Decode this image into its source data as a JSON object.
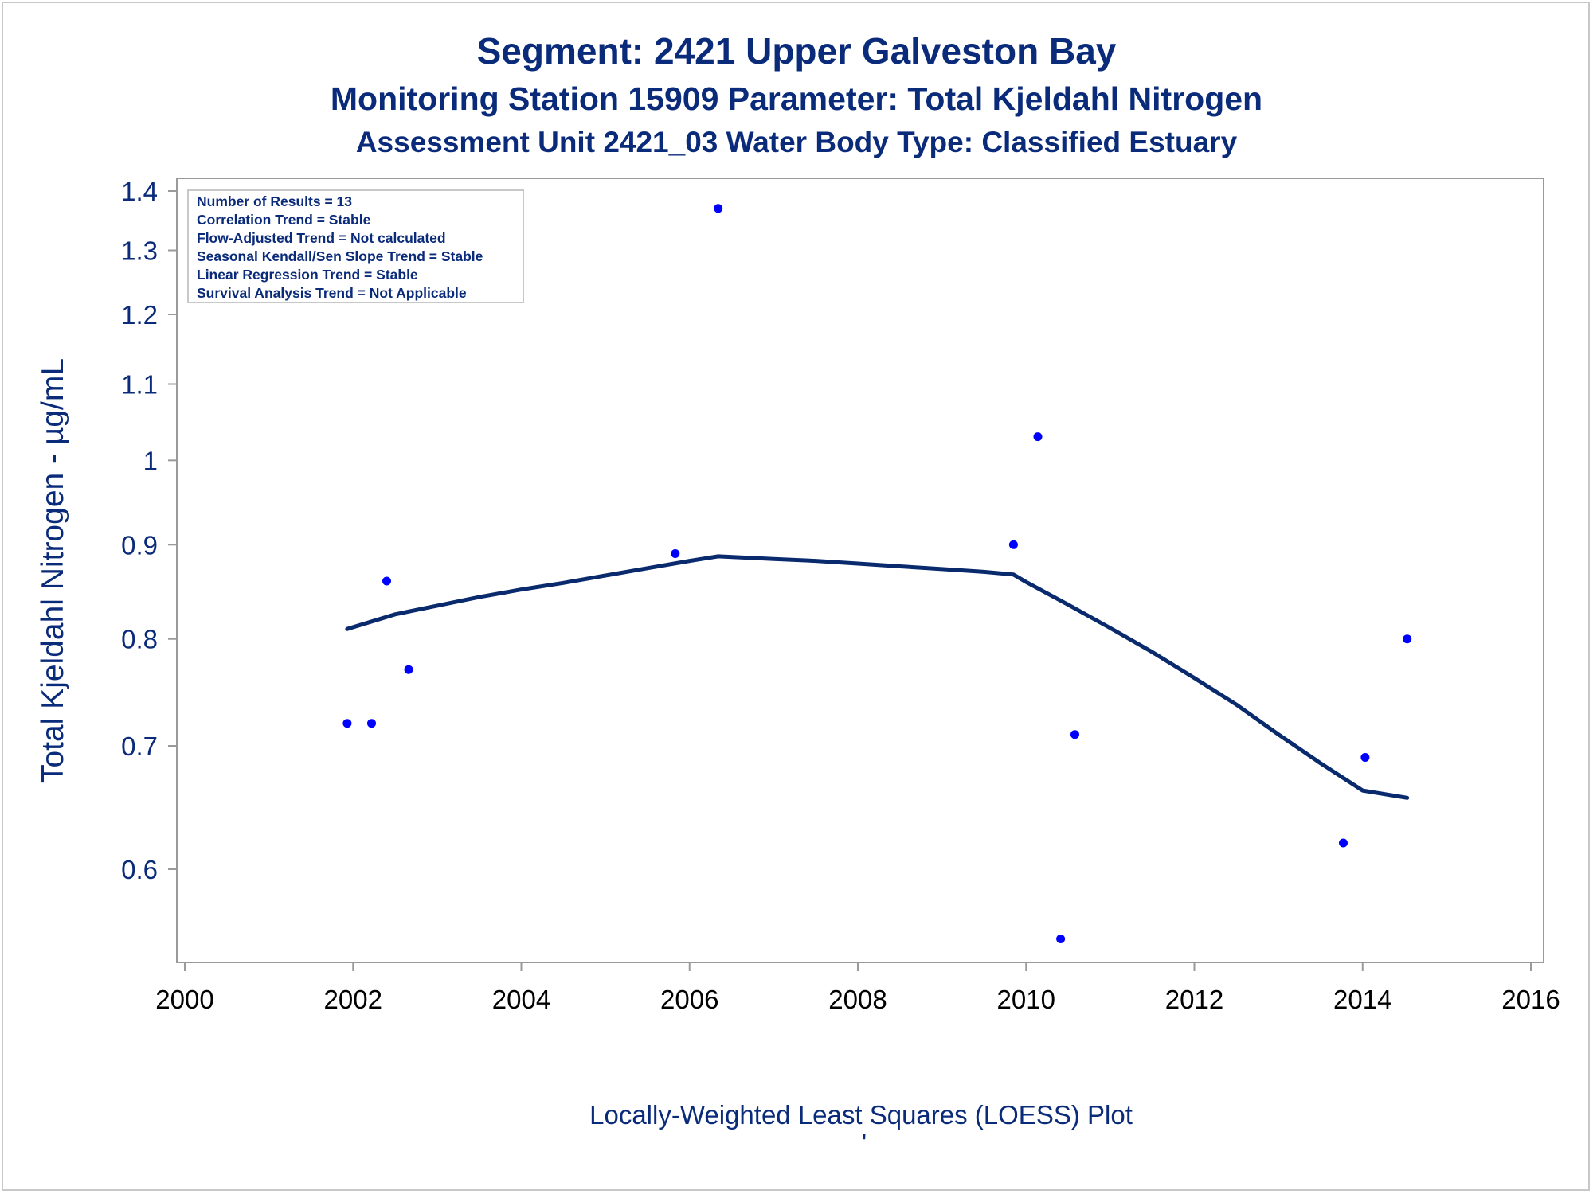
{
  "chart_data": {
    "type": "scatter",
    "title": "Segment: 2421  Upper Galveston Bay",
    "subtitle": "Monitoring Station 15909 Parameter: Total Kjeldahl Nitrogen",
    "subtitle2": "Assessment Unit 2421_03   Water Body Type: Classified Estuary",
    "xlabel": "",
    "ylabel": "Total Kjeldahl Nitrogen -  µg/mL",
    "footnote": "Locally-Weighted Least Squares (LOESS) Plot",
    "footnote_mark": "'",
    "x_scale": "linear",
    "y_scale": "log",
    "xlim": [
      2000,
      2016
    ],
    "ylim": [
      0.54,
      1.43
    ],
    "x_ticks": [
      2000,
      2002,
      2004,
      2006,
      2008,
      2010,
      2012,
      2014,
      2016
    ],
    "y_ticks": [
      0.6,
      0.7,
      0.8,
      0.9,
      1,
      1.1,
      1.2,
      1.3,
      1.4
    ],
    "y_tick_labels": [
      "0.6",
      "0.7",
      "0.8",
      "0.9",
      "1",
      "1.1",
      "1.2",
      "1.3",
      "1.4"
    ],
    "grid": false,
    "series": [
      {
        "kind": "points",
        "color": "#0000ff",
        "x": [
          2001.93,
          2002.22,
          2002.4,
          2002.66,
          2005.83,
          2006.34,
          2009.85,
          2010.14,
          2010.41,
          2010.58,
          2013.77,
          2014.03,
          2014.53
        ],
        "y": [
          0.72,
          0.72,
          0.86,
          0.77,
          0.89,
          1.37,
          0.9,
          1.03,
          0.55,
          0.71,
          0.62,
          0.69,
          0.8
        ]
      },
      {
        "kind": "line",
        "color": "#0a2a6e",
        "x": [
          2001.93,
          2002.5,
          2003.0,
          2003.5,
          2004.0,
          2004.5,
          2005.0,
          2005.5,
          2006.0,
          2006.34,
          2007.0,
          2007.5,
          2008.0,
          2008.5,
          2009.0,
          2009.5,
          2009.85,
          2010.0,
          2010.5,
          2011.0,
          2011.5,
          2012.0,
          2012.5,
          2013.0,
          2013.5,
          2014.0,
          2014.53
        ],
        "y": [
          0.81,
          0.825,
          0.834,
          0.843,
          0.851,
          0.858,
          0.866,
          0.874,
          0.882,
          0.887,
          0.884,
          0.882,
          0.879,
          0.876,
          0.873,
          0.87,
          0.867,
          0.859,
          0.835,
          0.811,
          0.787,
          0.762,
          0.737,
          0.71,
          0.685,
          0.662,
          0.656
        ]
      }
    ],
    "legend": {
      "placement": "top-left",
      "entries": [
        "Number of Results = 13",
        "Correlation Trend = Stable",
        "Flow-Adjusted Trend = Not calculated",
        "Seasonal Kendall/Sen Slope Trend = Stable",
        "Linear Regression Trend = Stable",
        "Survival Analysis Trend = Not Applicable"
      ]
    }
  }
}
